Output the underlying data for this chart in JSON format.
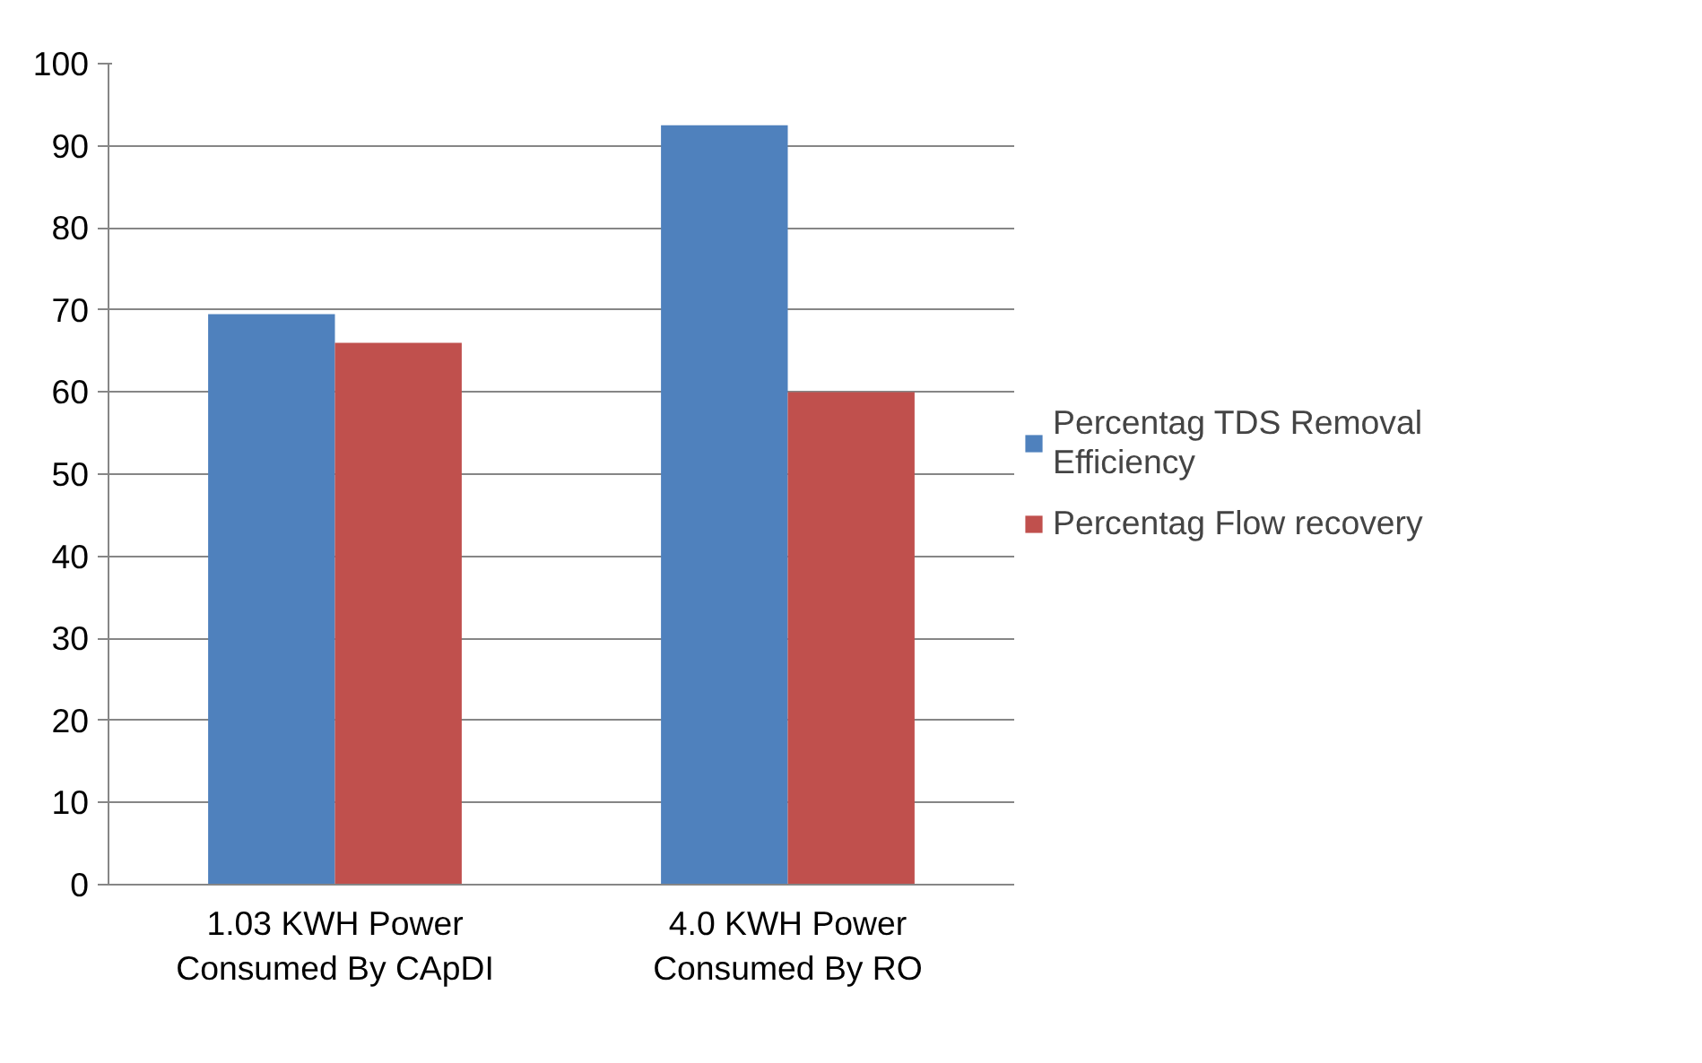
{
  "chart_data": {
    "type": "bar",
    "categories": [
      "1.03 KWH Power Consumed By CApDI",
      "4.0 KWH Power Consumed By RO"
    ],
    "series": [
      {
        "name": "Percentag TDS Removal Efficiency",
        "color": "#4f81bd",
        "values": [
          69.5,
          92.5
        ]
      },
      {
        "name": "Percentag Flow recovery",
        "color": "#c0504d",
        "values": [
          66,
          60
        ]
      }
    ],
    "ylim": [
      0,
      100
    ],
    "yticks": [
      0,
      10,
      20,
      30,
      40,
      50,
      60,
      70,
      80,
      90,
      100
    ],
    "grid": "y",
    "legend": "right"
  }
}
